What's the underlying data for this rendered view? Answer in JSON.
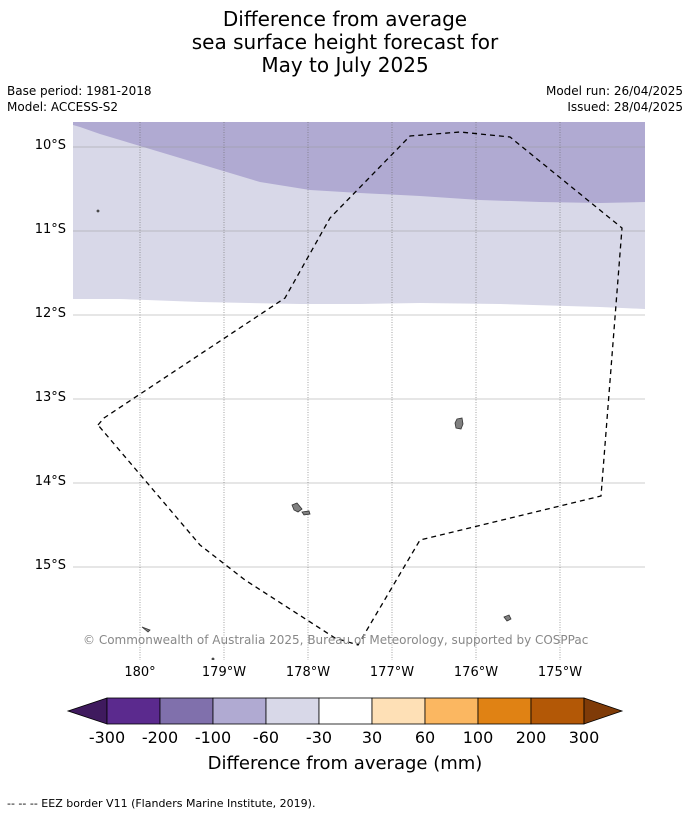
{
  "title_lines": [
    "Difference from average",
    "sea surface height forecast for",
    "May to July 2025"
  ],
  "meta": {
    "base_period": "Base period: 1981-2018",
    "model": "Model: ACCESS-S2",
    "model_run": "Model run: 26/04/2025",
    "issued": "Issued: 28/04/2025"
  },
  "map": {
    "lat_labels": [
      "10°S",
      "11°S",
      "12°S",
      "13°S",
      "14°S",
      "15°S"
    ],
    "lon_labels": [
      "180°",
      "179°W",
      "178°W",
      "177°W",
      "176°W",
      "175°W"
    ],
    "extent": {
      "lon_min": "179.2°E",
      "lon_max": "174.0°W",
      "lat_top": "9.7°S",
      "lat_bottom": "15.9°S"
    },
    "gridlines": true,
    "shaded_regions": [
      {
        "category": "-100 to -60 mm",
        "color": "#b0aad2"
      },
      {
        "category": "-60 to -30 mm",
        "color": "#d8d8e8"
      },
      {
        "category": "-30 to 30 mm",
        "color": "#ffffff"
      }
    ],
    "land_color": "#808080",
    "eez_line": "dashed",
    "credit": "© Commonwealth of Australia 2025, Bureau of Meteorology, supported by COSPPac"
  },
  "colorbar": {
    "ticks": [
      "-300",
      "-200",
      "-100",
      "-60",
      "-30",
      "30",
      "60",
      "100",
      "200",
      "300"
    ],
    "colors": [
      "#3f1a5e",
      "#5b2a8e",
      "#8070ac",
      "#b0aad2",
      "#d8d8e8",
      "#ffffff",
      "#fee0b6",
      "#fbb761",
      "#e08214",
      "#b35806",
      "#7f3b08"
    ],
    "title": "Difference from average (mm)"
  },
  "footnote": "--  --  -- EEZ border V11 (Flanders Marine Institute, 2019)."
}
